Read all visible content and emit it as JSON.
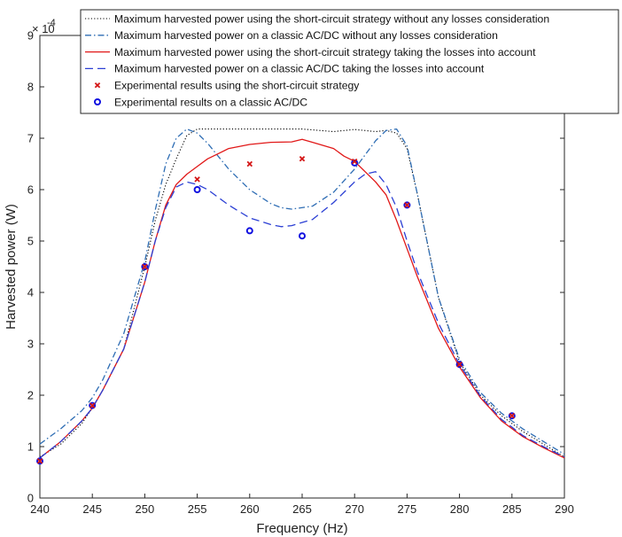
{
  "chart_data": {
    "type": "line",
    "xlabel": "Frequency (Hz)",
    "ylabel": "Harvested power (W)",
    "y_exponent_label": "× 10",
    "y_exponent_power": "-4",
    "xlim": [
      240,
      290
    ],
    "ylim": [
      0,
      9
    ],
    "x_ticks": [
      240,
      245,
      250,
      255,
      260,
      265,
      270,
      275,
      280,
      285,
      290
    ],
    "y_ticks": [
      0,
      1,
      2,
      3,
      4,
      5,
      6,
      7,
      8,
      9
    ],
    "grid": false,
    "legend_position": "top",
    "series": [
      {
        "name": "Maximum harvested power using the short-circuit strategy without any losses consideration",
        "color": "#000000",
        "style": "dotted",
        "x": [
          240,
          242,
          244,
          245,
          246,
          248,
          250,
          251,
          252,
          253,
          254,
          255,
          258,
          260,
          262,
          265,
          268,
          270,
          272,
          273,
          274,
          275,
          276,
          278,
          280,
          282,
          284,
          285,
          286,
          288,
          290
        ],
        "y": [
          0.8,
          1.05,
          1.45,
          1.75,
          2.1,
          2.9,
          4.5,
          5.4,
          6.1,
          6.6,
          7.05,
          7.18,
          7.18,
          7.18,
          7.18,
          7.18,
          7.13,
          7.17,
          7.13,
          7.15,
          7.1,
          6.8,
          5.9,
          3.9,
          2.65,
          2.0,
          1.6,
          1.45,
          1.3,
          1.05,
          0.8
        ]
      },
      {
        "name": "Maximum harvested power on a classic AC/DC without any losses consideration",
        "color": "#2e6db4",
        "style": "dashdot",
        "x": [
          240,
          242,
          244,
          245,
          246,
          248,
          250,
          251,
          252,
          253,
          254,
          255,
          256,
          258,
          260,
          262,
          263,
          264,
          266,
          268,
          270,
          272,
          273,
          274,
          275,
          276,
          278,
          280,
          282,
          284,
          285,
          286,
          288,
          290
        ],
        "y": [
          1.05,
          1.35,
          1.7,
          1.95,
          2.3,
          3.2,
          4.6,
          5.6,
          6.5,
          7.0,
          7.18,
          7.1,
          6.9,
          6.4,
          6.0,
          5.73,
          5.65,
          5.62,
          5.68,
          5.95,
          6.4,
          6.95,
          7.15,
          7.18,
          6.85,
          5.9,
          3.9,
          2.7,
          2.05,
          1.65,
          1.5,
          1.35,
          1.1,
          0.85
        ]
      },
      {
        "name": "Maximum harvested power using the short-circuit strategy taking the losses into account",
        "color": "#e11818",
        "style": "solid",
        "x": [
          240,
          242,
          244,
          245,
          246,
          248,
          250,
          251,
          252,
          253,
          254,
          255,
          256,
          257,
          258,
          260,
          262,
          264,
          265,
          266,
          268,
          269,
          270,
          271,
          272,
          273,
          274,
          275,
          276,
          278,
          280,
          282,
          284,
          285,
          286,
          288,
          290
        ],
        "y": [
          0.78,
          1.1,
          1.5,
          1.75,
          2.1,
          2.9,
          4.2,
          5.0,
          5.7,
          6.1,
          6.3,
          6.45,
          6.6,
          6.7,
          6.8,
          6.88,
          6.92,
          6.93,
          6.98,
          6.92,
          6.8,
          6.65,
          6.55,
          6.35,
          6.15,
          5.9,
          5.4,
          4.85,
          4.3,
          3.3,
          2.55,
          1.95,
          1.5,
          1.35,
          1.2,
          0.98,
          0.78
        ]
      },
      {
        "name": "Maximum harvested power on a classic AC/DC taking the losses into account",
        "color": "#2b3fd4",
        "style": "dashed",
        "x": [
          240,
          242,
          244,
          245,
          246,
          248,
          250,
          251,
          252,
          253,
          254,
          255,
          256,
          258,
          260,
          262,
          263,
          264,
          266,
          268,
          270,
          271,
          272,
          273,
          274,
          275,
          276,
          278,
          280,
          282,
          284,
          285,
          286,
          288,
          290
        ],
        "y": [
          0.78,
          1.1,
          1.5,
          1.75,
          2.1,
          2.9,
          4.2,
          5.0,
          5.65,
          6.05,
          6.15,
          6.1,
          6.0,
          5.7,
          5.45,
          5.32,
          5.28,
          5.3,
          5.42,
          5.75,
          6.15,
          6.3,
          6.35,
          6.1,
          5.65,
          5.0,
          4.4,
          3.4,
          2.6,
          1.98,
          1.53,
          1.38,
          1.22,
          1.0,
          0.8
        ]
      }
    ],
    "markers": [
      {
        "name": "Experimental results using the short-circuit strategy",
        "color": "#d41515",
        "symbol": "x",
        "x": [
          240,
          245,
          250,
          255,
          260,
          265,
          270,
          275,
          280,
          285
        ],
        "y": [
          0.72,
          1.8,
          4.5,
          6.2,
          6.5,
          6.6,
          6.55,
          5.7,
          2.6,
          1.6
        ]
      },
      {
        "name": "Experimental results on a classic AC/DC",
        "color": "#1010e0",
        "symbol": "o",
        "x": [
          240,
          245,
          250,
          255,
          260,
          265,
          270,
          275,
          280,
          285
        ],
        "y": [
          0.72,
          1.8,
          4.5,
          6.0,
          5.2,
          5.1,
          6.52,
          5.7,
          2.6,
          1.6
        ]
      }
    ]
  }
}
